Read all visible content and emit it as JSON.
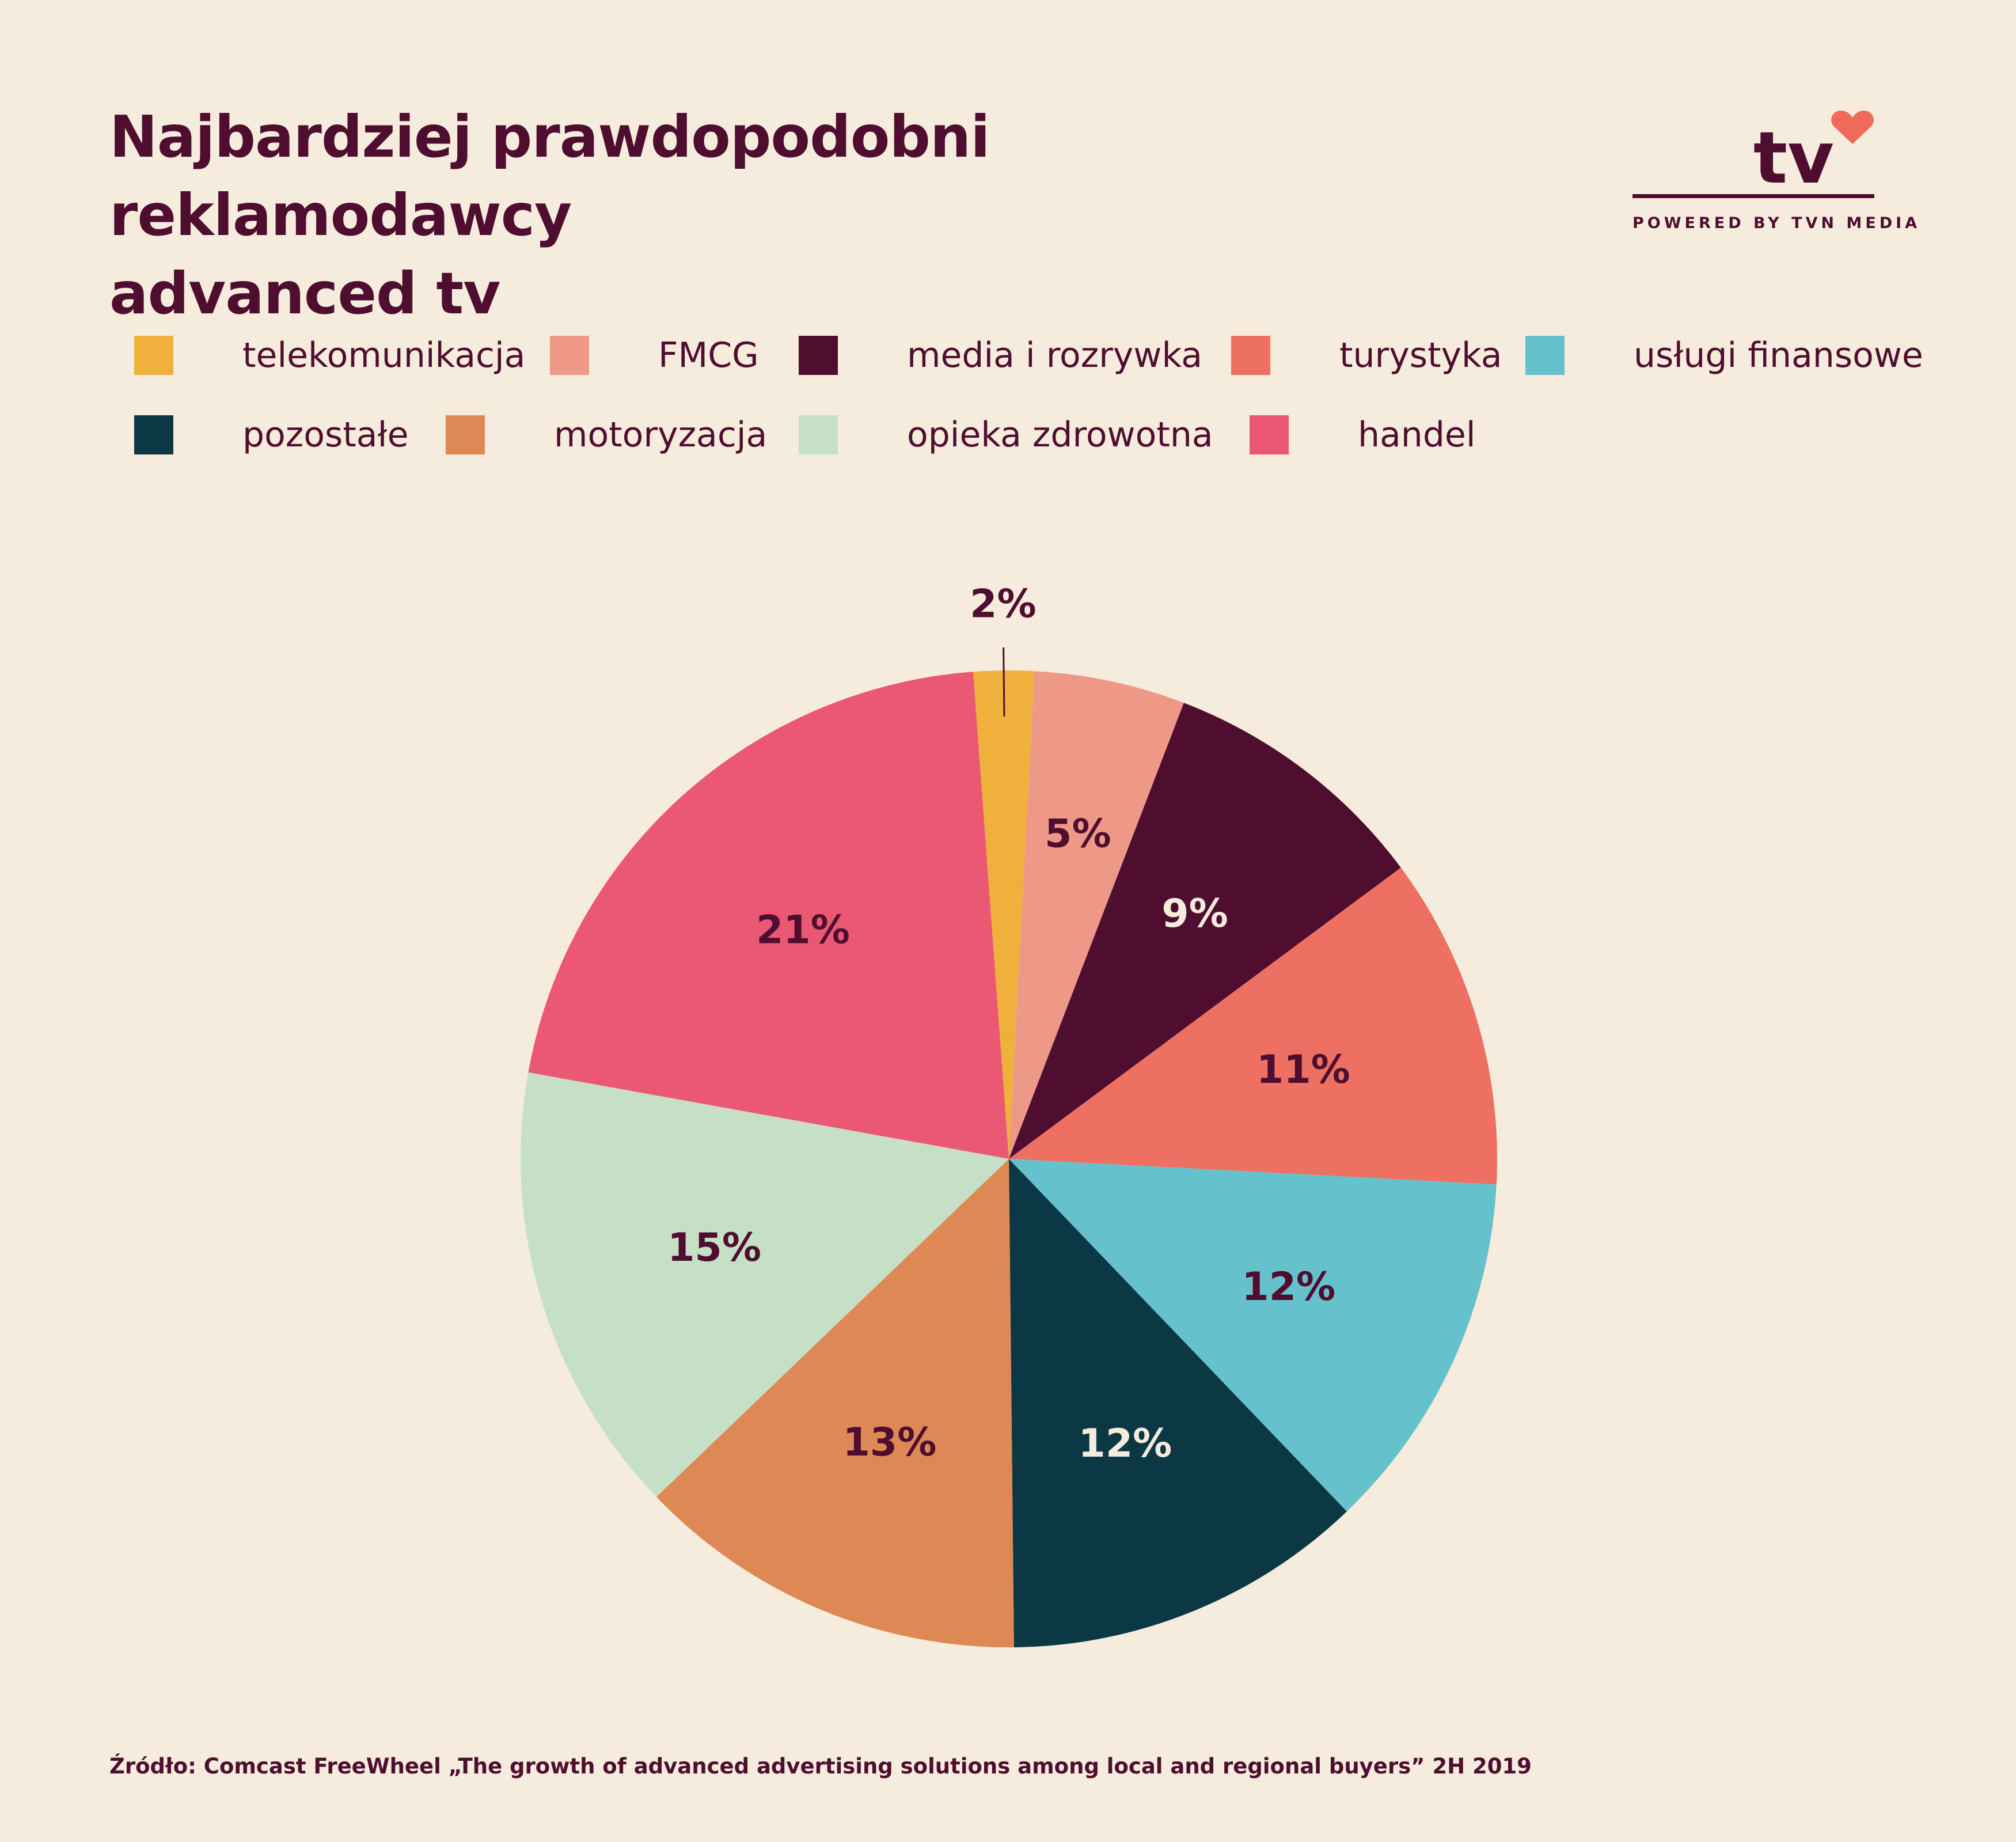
{
  "header": {
    "title_line1": "Najbardziej prawdopodobni reklamodawcy",
    "title_line2": "advanced tv"
  },
  "logo": {
    "text": "tv",
    "tagline": "POWERED BY TVN MEDIA",
    "heart_color": "#f06a5c"
  },
  "chart_data": {
    "type": "pie",
    "title": "",
    "start_angle_deg": -4.2,
    "legend_position": "top",
    "slices": [
      {
        "label": "telekomunikacja",
        "value": 2,
        "display": "2%",
        "color": "#efb13b",
        "text_color": "#4f0d30"
      },
      {
        "label": "FMCG",
        "value": 5,
        "display": "5%",
        "color": "#ee9887",
        "text_color": "#4f0d30"
      },
      {
        "label": "media i rozrywka",
        "value": 9,
        "display": "9%",
        "color": "#4f0d30",
        "text_color": "#f5ecdd"
      },
      {
        "label": "turystyka",
        "value": 11,
        "display": "11%",
        "color": "#ed7062",
        "text_color": "#4f0d30"
      },
      {
        "label": "usługi finansowe",
        "value": 12,
        "display": "12%",
        "color": "#65c2cc",
        "text_color": "#4f0d30"
      },
      {
        "label": "pozostałe",
        "value": 12,
        "display": "12%",
        "color": "#0b3844",
        "text_color": "#f5ecdd"
      },
      {
        "label": "motoryzacja",
        "value": 13,
        "display": "13%",
        "color": "#de8955",
        "text_color": "#4f0d30"
      },
      {
        "label": "opieka zdrowotna",
        "value": 15,
        "display": "15%",
        "color": "#c6e0c7",
        "text_color": "#4f0d30"
      },
      {
        "label": "handel",
        "value": 21,
        "display": "21%",
        "color": "#eb5874",
        "text_color": "#4f0d30"
      }
    ]
  },
  "footnote": "Źródło: Comcast FreeWheel „The growth of advanced advertising solutions among local and regional buyers” 2H 2019"
}
